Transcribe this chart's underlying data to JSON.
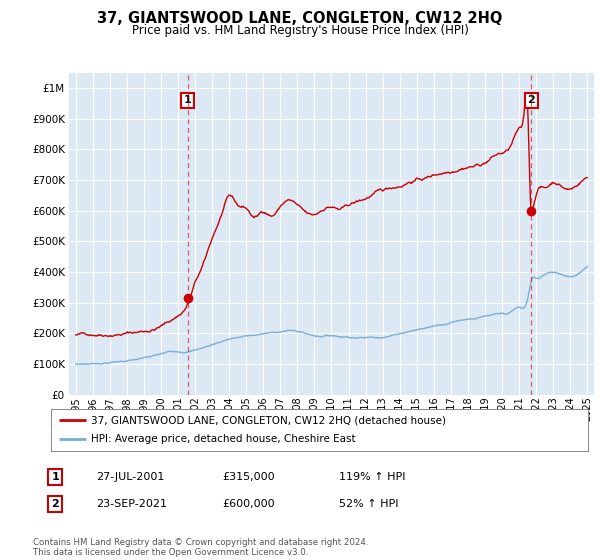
{
  "title": "37, GIANTSWOOD LANE, CONGLETON, CW12 2HQ",
  "subtitle": "Price paid vs. HM Land Registry's House Price Index (HPI)",
  "legend_line1": "37, GIANTSWOOD LANE, CONGLETON, CW12 2HQ (detached house)",
  "legend_line2": "HPI: Average price, detached house, Cheshire East",
  "annotation1_label": "1",
  "annotation1_date": "27-JUL-2001",
  "annotation1_price": "£315,000",
  "annotation1_pct": "119% ↑ HPI",
  "annotation2_label": "2",
  "annotation2_date": "23-SEP-2021",
  "annotation2_price": "£600,000",
  "annotation2_pct": "52% ↑ HPI",
  "footer1": "Contains HM Land Registry data © Crown copyright and database right 2024.",
  "footer2": "This data is licensed under the Open Government Licence v3.0.",
  "red_color": "#cc0000",
  "blue_color": "#7aaed6",
  "ylim_min": 0,
  "ylim_max": 1050000,
  "xlim_min": 1994.6,
  "xlim_max": 2025.4,
  "background_color": "#ffffff",
  "plot_bg_color": "#dce9f5"
}
